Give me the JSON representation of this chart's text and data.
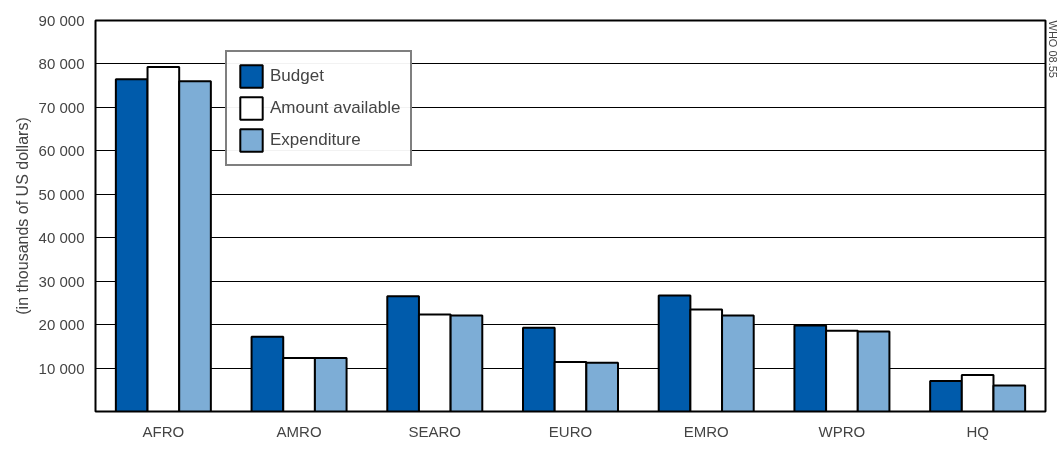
{
  "chart_data": {
    "type": "bar",
    "ylabel": "(in thousands of US dollars)",
    "categories": [
      "AFRO",
      "AMRO",
      "SEARO",
      "EURO",
      "EMRO",
      "WPRO",
      "HQ"
    ],
    "series": [
      {
        "name": "Budget",
        "color": "#005bab",
        "values": [
          76500,
          17200,
          26500,
          19300,
          26700,
          19800,
          7000
        ]
      },
      {
        "name": "Amount available",
        "color": "#ffffff",
        "values": [
          79300,
          12300,
          22300,
          11400,
          23500,
          18600,
          8400
        ]
      },
      {
        "name": "Expenditure",
        "color": "#7dadd6",
        "values": [
          76000,
          12300,
          22100,
          11200,
          22100,
          18400,
          6000
        ]
      }
    ],
    "ylim": [
      0,
      90000
    ],
    "yticks": [
      {
        "value": 10000,
        "label": "10 000"
      },
      {
        "value": 20000,
        "label": "20 000"
      },
      {
        "value": 30000,
        "label": "30 000"
      },
      {
        "value": 40000,
        "label": "40 000"
      },
      {
        "value": 50000,
        "label": "50 000"
      },
      {
        "value": 60000,
        "label": "60 000"
      },
      {
        "value": 70000,
        "label": "70 000"
      },
      {
        "value": 80000,
        "label": "80 000"
      },
      {
        "value": 90000,
        "label": "90 000"
      }
    ],
    "grid": "y",
    "legend": "top left",
    "annotations": [
      "WHO 08.55"
    ]
  }
}
